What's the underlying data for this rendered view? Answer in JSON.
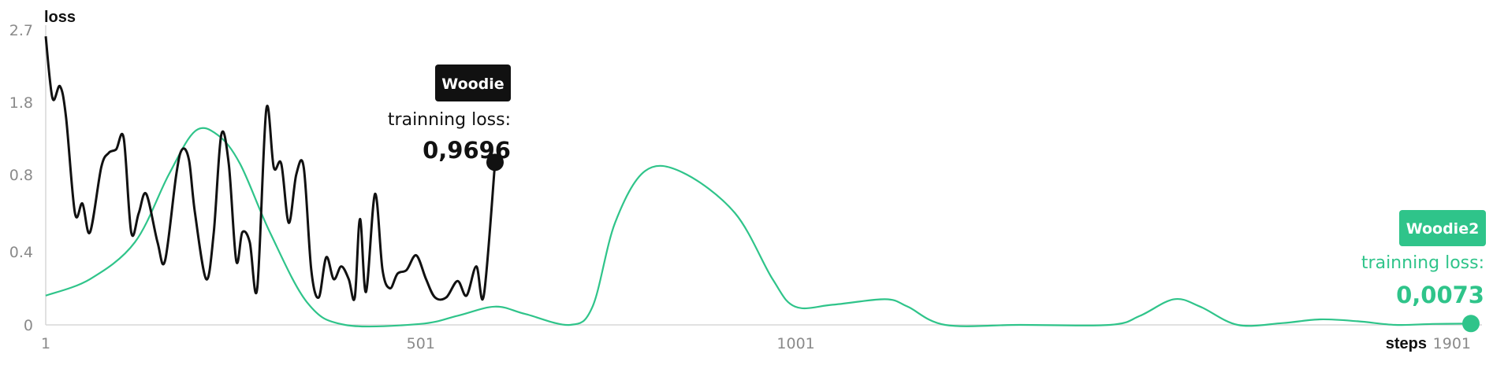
{
  "chart_data": {
    "type": "line",
    "xlabel": "steps",
    "ylabel": "loss",
    "x_ticks": [
      "1",
      "501",
      "1001",
      "1901"
    ],
    "y_ticks": [
      "2.7",
      "1.8",
      "0.8",
      "0.4",
      "0"
    ],
    "y_tick_values": [
      2.7,
      1.8,
      0.8,
      0.4,
      0
    ],
    "grid": false,
    "series": [
      {
        "name": "Woodie",
        "color": "#111111",
        "label": "trainning loss:",
        "final_value": "0,9696",
        "points": [
          [
            1,
            2.62
          ],
          [
            10,
            1.85
          ],
          [
            20,
            2.0
          ],
          [
            28,
            1.6
          ],
          [
            40,
            0.6
          ],
          [
            50,
            0.65
          ],
          [
            60,
            0.5
          ],
          [
            75,
            0.9
          ],
          [
            85,
            1.1
          ],
          [
            95,
            1.15
          ],
          [
            105,
            1.3
          ],
          [
            115,
            0.5
          ],
          [
            125,
            0.6
          ],
          [
            135,
            0.7
          ],
          [
            150,
            0.45
          ],
          [
            160,
            0.35
          ],
          [
            175,
            0.8
          ],
          [
            183,
            1.15
          ],
          [
            192,
            1.0
          ],
          [
            200,
            0.6
          ],
          [
            215,
            0.25
          ],
          [
            225,
            0.5
          ],
          [
            235,
            1.35
          ],
          [
            245,
            0.95
          ],
          [
            255,
            0.35
          ],
          [
            263,
            0.5
          ],
          [
            273,
            0.45
          ],
          [
            283,
            0.2
          ],
          [
            295,
            1.7
          ],
          [
            305,
            0.9
          ],
          [
            315,
            0.95
          ],
          [
            325,
            0.55
          ],
          [
            335,
            0.8
          ],
          [
            345,
            0.9
          ],
          [
            355,
            0.3
          ],
          [
            365,
            0.15
          ],
          [
            375,
            0.37
          ],
          [
            385,
            0.25
          ],
          [
            395,
            0.32
          ],
          [
            405,
            0.25
          ],
          [
            413,
            0.15
          ],
          [
            420,
            0.57
          ],
          [
            428,
            0.18
          ],
          [
            440,
            0.7
          ],
          [
            450,
            0.3
          ],
          [
            460,
            0.2
          ],
          [
            470,
            0.28
          ],
          [
            482,
            0.3
          ],
          [
            495,
            0.38
          ],
          [
            508,
            0.25
          ],
          [
            520,
            0.15
          ],
          [
            535,
            0.15
          ],
          [
            550,
            0.24
          ],
          [
            562,
            0.16
          ],
          [
            575,
            0.32
          ],
          [
            585,
            0.16
          ],
          [
            600,
            0.9696
          ]
        ]
      },
      {
        "name": "Woodie2",
        "color": "#2fc48a",
        "label": "trainning loss:",
        "final_value": "0,0073",
        "points": [
          [
            1,
            0.16
          ],
          [
            60,
            0.25
          ],
          [
            120,
            0.45
          ],
          [
            165,
            0.8
          ],
          [
            200,
            1.4
          ],
          [
            230,
            1.35
          ],
          [
            260,
            0.95
          ],
          [
            300,
            0.5
          ],
          [
            350,
            0.12
          ],
          [
            400,
            0.0
          ],
          [
            500,
            0.005
          ],
          [
            550,
            0.05
          ],
          [
            600,
            0.1
          ],
          [
            640,
            0.06
          ],
          [
            700,
            0.0
          ],
          [
            730,
            0.1
          ],
          [
            760,
            0.55
          ],
          [
            800,
            0.85
          ],
          [
            850,
            0.83
          ],
          [
            920,
            0.6
          ],
          [
            970,
            0.25
          ],
          [
            1000,
            0.1
          ],
          [
            1050,
            0.11
          ],
          [
            1120,
            0.14
          ],
          [
            1150,
            0.1
          ],
          [
            1200,
            0.0
          ],
          [
            1300,
            0.0
          ],
          [
            1420,
            0.0
          ],
          [
            1460,
            0.05
          ],
          [
            1505,
            0.14
          ],
          [
            1540,
            0.1
          ],
          [
            1590,
            0.0
          ],
          [
            1650,
            0.01
          ],
          [
            1700,
            0.03
          ],
          [
            1750,
            0.02
          ],
          [
            1800,
            0.0
          ],
          [
            1850,
            0.005
          ],
          [
            1901,
            0.0073
          ]
        ]
      }
    ]
  }
}
